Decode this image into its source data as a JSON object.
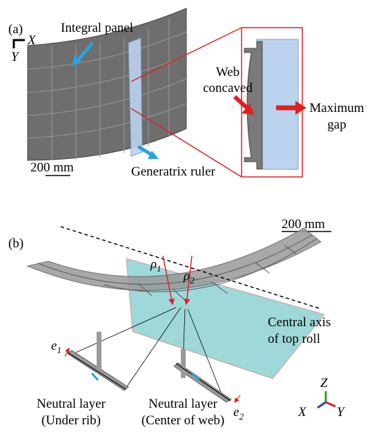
{
  "panel_a": {
    "label": "(a)",
    "axes": {
      "x": "X",
      "y": "Y"
    },
    "integral_panel": "Integral panel",
    "web_concaved": [
      "Web",
      "concaved"
    ],
    "maximum_gap": [
      "Maximum",
      "gap"
    ],
    "scale_bar": "200 mm",
    "generatrix_ruler": "Generatrix ruler"
  },
  "panel_b": {
    "label": "(b)",
    "scale_bar": "200 mm",
    "rho_1": {
      "symbol": "ρ",
      "sub": "1"
    },
    "rho_2": {
      "symbol": "ρ",
      "sub": "2"
    },
    "central_axis": [
      "Central axis",
      "of top roll"
    ],
    "e_1": {
      "symbol": "e",
      "sub": "1"
    },
    "e_2": {
      "symbol": "e",
      "sub": "2"
    },
    "neutral_under_rib": [
      "Neutral layer",
      "(Under rib)"
    ],
    "neutral_center_web": [
      "Neutral layer",
      "(Center of web)"
    ],
    "axes": {
      "z": "Z",
      "x": "X",
      "y": "Y"
    }
  }
}
